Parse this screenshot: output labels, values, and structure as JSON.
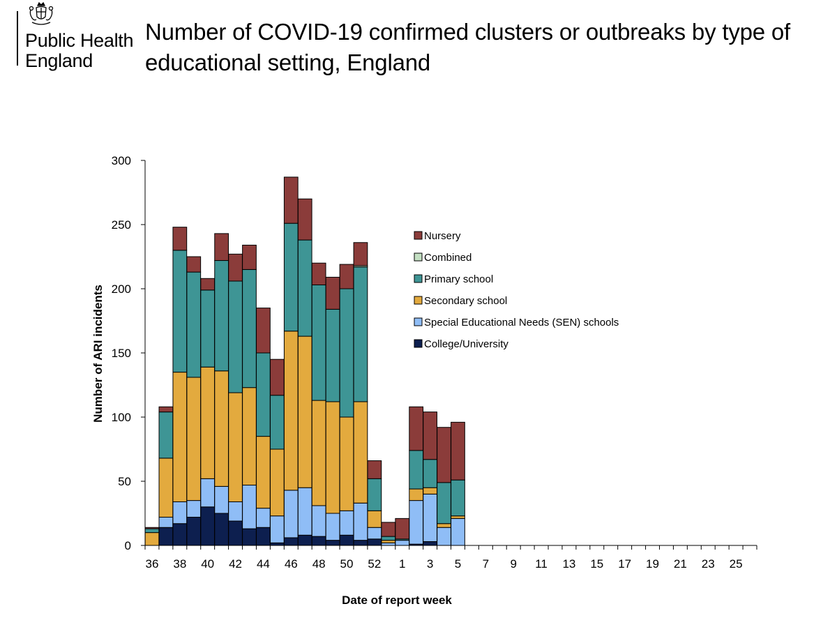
{
  "org": {
    "logo_line1": "Public Health",
    "logo_line2": "England",
    "crest_icon": "royal-crest-icon"
  },
  "title_lines": [
    "Number of COVID-19 confirmed clusters or outbreaks by type of",
    "educational setting, England"
  ],
  "chart_data": {
    "type": "bar",
    "stacked": true,
    "title": "Number of COVID-19 confirmed clusters or outbreaks by type of educational setting, England",
    "xlabel": "Date of report week",
    "ylabel": "Number of ARI incidents",
    "ylim": [
      0,
      300
    ],
    "yticks": [
      0,
      50,
      100,
      150,
      200,
      250,
      300
    ],
    "grid": false,
    "legend_position": "upper-right",
    "categories": [
      "36",
      "37",
      "38",
      "39",
      "40",
      "41",
      "42",
      "43",
      "44",
      "45",
      "46",
      "47",
      "48",
      "49",
      "50",
      "51",
      "52",
      "53",
      "1",
      "2",
      "3",
      "4",
      "5",
      "6",
      "7",
      "8",
      "9",
      "10",
      "11",
      "12",
      "13",
      "14",
      "15",
      "16",
      "17",
      "18",
      "19",
      "20",
      "21",
      "22",
      "23",
      "24",
      "25",
      "26"
    ],
    "tick_labels": [
      "36",
      "",
      "38",
      "",
      "40",
      "",
      "42",
      "",
      "44",
      "",
      "46",
      "",
      "48",
      "",
      "50",
      "",
      "52",
      "",
      "1",
      "",
      "3",
      "",
      "5",
      "",
      "7",
      "",
      "9",
      "",
      "11",
      "",
      "13",
      "",
      "15",
      "",
      "17",
      "",
      "19",
      "",
      "21",
      "",
      "23",
      "",
      "25",
      ""
    ],
    "series": [
      {
        "name": "College/University",
        "color": "#0d1f4f",
        "values": [
          0,
          14,
          17,
          22,
          30,
          25,
          19,
          13,
          14,
          2,
          6,
          8,
          7,
          4,
          8,
          4,
          5,
          0,
          0,
          1,
          3,
          0,
          0,
          0,
          0,
          0,
          0,
          0,
          0,
          0,
          0,
          0,
          0,
          0,
          0,
          0,
          0,
          0,
          0,
          0,
          0,
          0,
          0,
          0
        ]
      },
      {
        "name": "Special Educational Needs (SEN) schools",
        "color": "#8fbdf6",
        "values": [
          0,
          8,
          17,
          13,
          22,
          21,
          15,
          34,
          15,
          21,
          37,
          37,
          24,
          21,
          19,
          29,
          9,
          2,
          4,
          34,
          37,
          14,
          21,
          0,
          0,
          0,
          0,
          0,
          0,
          0,
          0,
          0,
          0,
          0,
          0,
          0,
          0,
          0,
          0,
          0,
          0,
          0,
          0,
          0
        ]
      },
      {
        "name": "Secondary school",
        "color": "#e3aa3e",
        "values": [
          10,
          46,
          101,
          96,
          87,
          90,
          85,
          76,
          56,
          52,
          124,
          118,
          82,
          87,
          73,
          79,
          13,
          2,
          0,
          9,
          5,
          3,
          2,
          0,
          0,
          0,
          0,
          0,
          0,
          0,
          0,
          0,
          0,
          0,
          0,
          0,
          0,
          0,
          0,
          0,
          0,
          0,
          0,
          0
        ]
      },
      {
        "name": "Primary school",
        "color": "#3e9595",
        "values": [
          3,
          36,
          95,
          82,
          60,
          86,
          87,
          92,
          65,
          42,
          84,
          75,
          90,
          72,
          100,
          105,
          25,
          3,
          1,
          30,
          22,
          32,
          28,
          0,
          0,
          0,
          0,
          0,
          0,
          0,
          0,
          0,
          0,
          0,
          0,
          0,
          0,
          0,
          0,
          0,
          0,
          0,
          0,
          0
        ]
      },
      {
        "name": "Combined",
        "color": "#c3dfc2",
        "values": [
          0,
          0,
          0,
          0,
          0,
          0,
          0,
          0,
          0,
          0,
          0,
          0,
          0,
          0,
          0,
          1,
          0,
          0,
          0,
          0,
          0,
          0,
          0,
          0,
          0,
          0,
          0,
          0,
          0,
          0,
          0,
          0,
          0,
          0,
          0,
          0,
          0,
          0,
          0,
          0,
          0,
          0,
          0,
          0
        ]
      },
      {
        "name": "Nursery",
        "color": "#8b3c3a",
        "values": [
          1,
          4,
          18,
          12,
          9,
          21,
          21,
          19,
          35,
          28,
          36,
          32,
          17,
          25,
          19,
          18,
          14,
          11,
          16,
          34,
          37,
          43,
          45,
          0,
          0,
          0,
          0,
          0,
          0,
          0,
          0,
          0,
          0,
          0,
          0,
          0,
          0,
          0,
          0,
          0,
          0,
          0,
          0,
          0
        ]
      }
    ],
    "legend_order": [
      "Nursery",
      "Combined",
      "Primary school",
      "Secondary school",
      "Special Educational Needs (SEN) schools",
      "College/University"
    ]
  }
}
